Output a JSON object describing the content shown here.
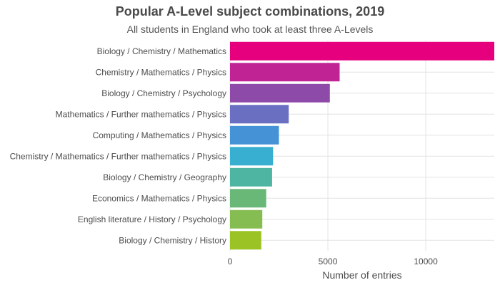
{
  "chart_data": {
    "type": "bar",
    "orientation": "horizontal",
    "title": "Popular A-Level subject combinations, 2019",
    "subtitle": "All students in England who took at least three A-Levels",
    "xlabel": "Number of entries",
    "ylabel": "",
    "xlim": [
      0,
      13500
    ],
    "xticks": [
      0,
      5000,
      10000
    ],
    "grid": true,
    "legend": "none",
    "categories": [
      "Biology / Chemistry / Mathematics",
      "Chemistry / Mathematics / Physics",
      "Biology / Chemistry / Psychology",
      "Mathematics / Further mathematics / Physics",
      "Computing / Mathematics / Physics",
      "Chemistry / Mathematics / Further mathematics / Physics",
      "Biology / Chemistry / Geography",
      "Economics / Mathematics / Physics",
      "English literature / History / Psychology",
      "Biology / Chemistry / History"
    ],
    "values": [
      13500,
      5600,
      5100,
      3000,
      2500,
      2200,
      2150,
      1850,
      1650,
      1600
    ],
    "colors": [
      "#e6007e",
      "#c02394",
      "#8e4aa8",
      "#6b6fc2",
      "#4593d6",
      "#38aed0",
      "#4fb5a3",
      "#69b878",
      "#86bd52",
      "#9cc326"
    ]
  }
}
